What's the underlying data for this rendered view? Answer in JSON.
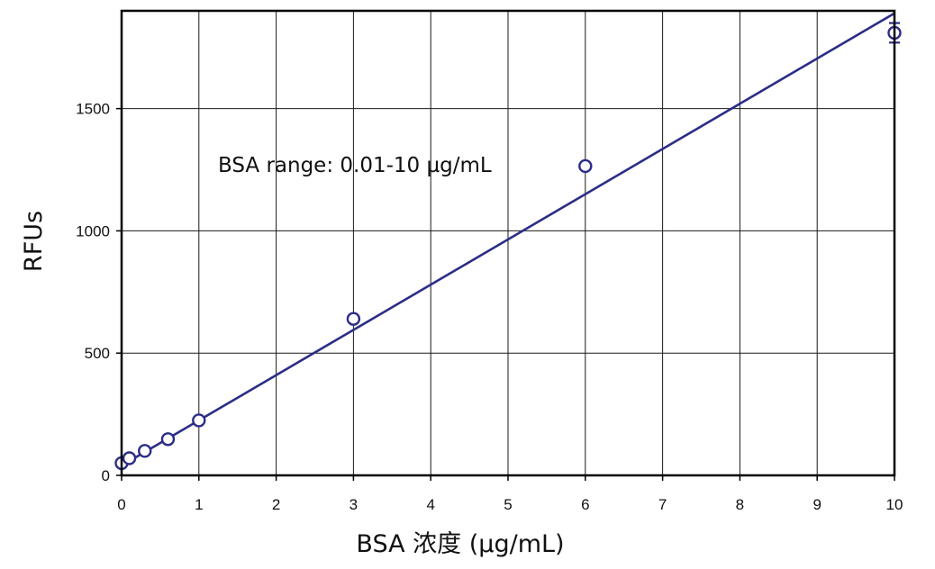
{
  "chart_data": {
    "type": "scatter",
    "xlabel": "BSA 浓度 (µg/mL)",
    "ylabel": "RFUs",
    "annotation": "BSA range: 0.01-10 µg/mL",
    "xlim": [
      0,
      10
    ],
    "ylim": [
      0,
      1900
    ],
    "x_ticks": [
      0,
      1,
      2,
      3,
      4,
      5,
      6,
      7,
      8,
      9,
      10
    ],
    "y_ticks": [
      0,
      500,
      1000,
      1500
    ],
    "grid": true,
    "series": [
      {
        "points": [
          {
            "x": 0.0,
            "y": 50,
            "err": 0
          },
          {
            "x": 0.1,
            "y": 70,
            "err": 0
          },
          {
            "x": 0.3,
            "y": 100,
            "err": 0
          },
          {
            "x": 0.6,
            "y": 148,
            "err": 0
          },
          {
            "x": 1.0,
            "y": 225,
            "err": 0
          },
          {
            "x": 3.0,
            "y": 640,
            "err": 0
          },
          {
            "x": 6.0,
            "y": 1265,
            "err": 0
          },
          {
            "x": 10.0,
            "y": 1810,
            "err": 40
          }
        ]
      }
    ],
    "fit_line": {
      "x_start": 0,
      "y_start": 40,
      "x_end": 10,
      "y_end": 1890
    },
    "colors": {
      "series": "#2b2d86",
      "grid": "#1a1a1a",
      "axis": "#000000"
    }
  }
}
